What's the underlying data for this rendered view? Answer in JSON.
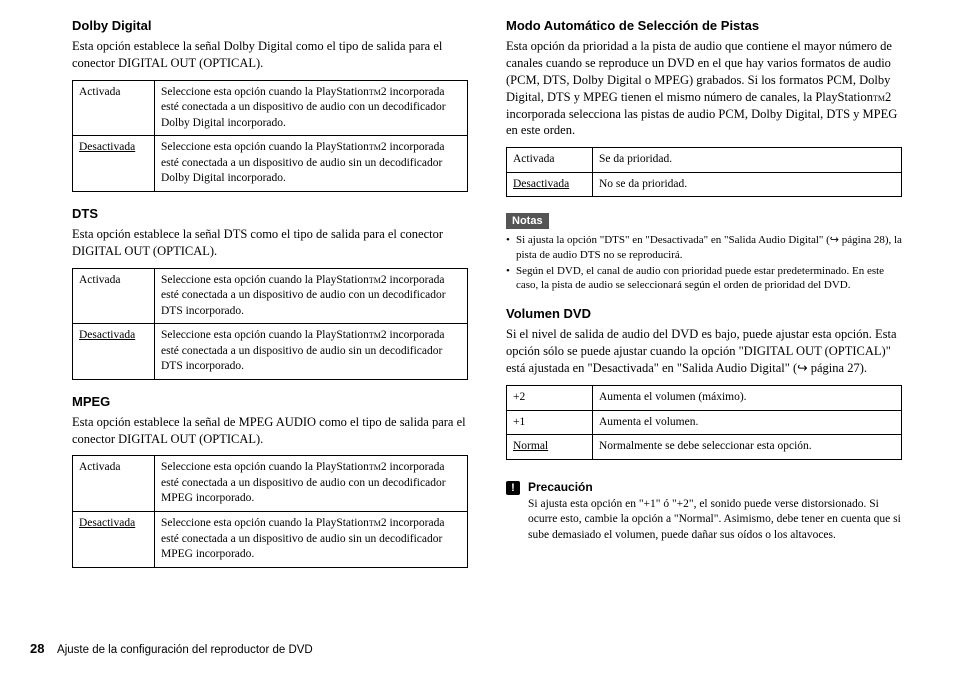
{
  "left": {
    "dolby": {
      "heading": "Dolby Digital",
      "desc": "Esta opción establece la señal Dolby Digital como el tipo de salida para el conector DIGITAL OUT (OPTICAL).",
      "rows": [
        {
          "label": "Activada",
          "underline": false,
          "a": "Seleccione esta opción cuando la PlayStation",
          "b": "2 incorporada esté conectada a un dispositivo de audio con un decodificador Dolby Digital incorporado."
        },
        {
          "label": "Desactivada",
          "underline": true,
          "a": "Seleccione esta opción cuando la PlayStation",
          "b": "2 incorporada esté conectada a un dispositivo de audio sin un decodificador Dolby Digital incorporado."
        }
      ]
    },
    "dts": {
      "heading": "DTS",
      "desc": "Esta opción establece la señal DTS como el tipo de salida para el conector DIGITAL OUT (OPTICAL).",
      "rows": [
        {
          "label": "Activada",
          "underline": false,
          "a": "Seleccione esta opción cuando la PlayStation",
          "b": "2 incorporada esté conectada a un dispositivo de audio con un decodificador DTS incorporado."
        },
        {
          "label": "Desactivada",
          "underline": true,
          "a": "Seleccione esta opción cuando la PlayStation",
          "b": "2 incorporada esté conectada a un dispositivo de audio sin un decodificador DTS incorporado."
        }
      ]
    },
    "mpeg": {
      "heading": "MPEG",
      "desc": "Esta opción establece la señal de MPEG AUDIO como el tipo de salida para el conector DIGITAL OUT (OPTICAL).",
      "rows": [
        {
          "label": "Activada",
          "underline": false,
          "a": "Seleccione esta opción cuando la PlayStation",
          "b": "2 incorporada esté conectada a un dispositivo de audio con un decodificador MPEG incorporado."
        },
        {
          "label": "Desactivada",
          "underline": true,
          "a": "Seleccione esta opción cuando la PlayStation",
          "b": "2 incorporada esté conectada a un dispositivo de audio sin un decodificador MPEG incorporado."
        }
      ]
    }
  },
  "right": {
    "modo": {
      "heading": "Modo Automático de Selección de Pistas",
      "desc_a": "Esta opción da prioridad a la pista de audio que contiene el mayor número de canales cuando se reproduce un DVD en el que hay varios formatos de audio (PCM, DTS, Dolby Digital o MPEG) grabados. Si los formatos PCM, Dolby Digital, DTS y MPEG tienen el mismo número de canales, la PlayStation",
      "desc_b": "2 incorporada selecciona las pistas de audio PCM, Dolby Digital, DTS y MPEG en este orden.",
      "rows": [
        {
          "label": "Activada",
          "underline": false,
          "text": "Se da prioridad."
        },
        {
          "label": "Desactivada",
          "underline": true,
          "text": "No se da prioridad."
        }
      ]
    },
    "notas": {
      "label": "Notas",
      "items": [
        "Si ajusta la opción \"DTS\" en \"Desactivada\" en \"Salida Audio Digital\" (↪ página 28), la pista de audio DTS no se reproducirá.",
        "Según el DVD, el canal de audio con prioridad puede estar predeterminado. En este caso, la pista de audio se seleccionará según el orden de prioridad del DVD."
      ]
    },
    "volumen": {
      "heading": "Volumen DVD",
      "desc": "Si el nivel de salida de audio del DVD es bajo, puede ajustar esta opción. Esta opción sólo se puede ajustar cuando la opción \"DIGITAL OUT (OPTICAL)\" está ajustada en \"Desactivada\" en \"Salida Audio Digital\" (↪ página 27).",
      "rows": [
        {
          "label": "+2",
          "underline": false,
          "text": "Aumenta el volumen (máximo)."
        },
        {
          "label": "+1",
          "underline": false,
          "text": "Aumenta el volumen."
        },
        {
          "label": "Normal",
          "underline": true,
          "text": "Normalmente se debe seleccionar esta opción."
        }
      ]
    },
    "caution": {
      "title": "Precaución",
      "text": "Si ajusta esta opción en \"+1\" ó \"+2\", el sonido puede verse distorsionado. Si ocurre esto, cambie la opción a \"Normal\". Asimismo, debe tener en cuenta que si sube demasiado el volumen, puede dañar sus oídos o los altavoces."
    }
  },
  "footer": {
    "page": "28",
    "text": "Ajuste de la configuración del reproductor de DVD"
  }
}
